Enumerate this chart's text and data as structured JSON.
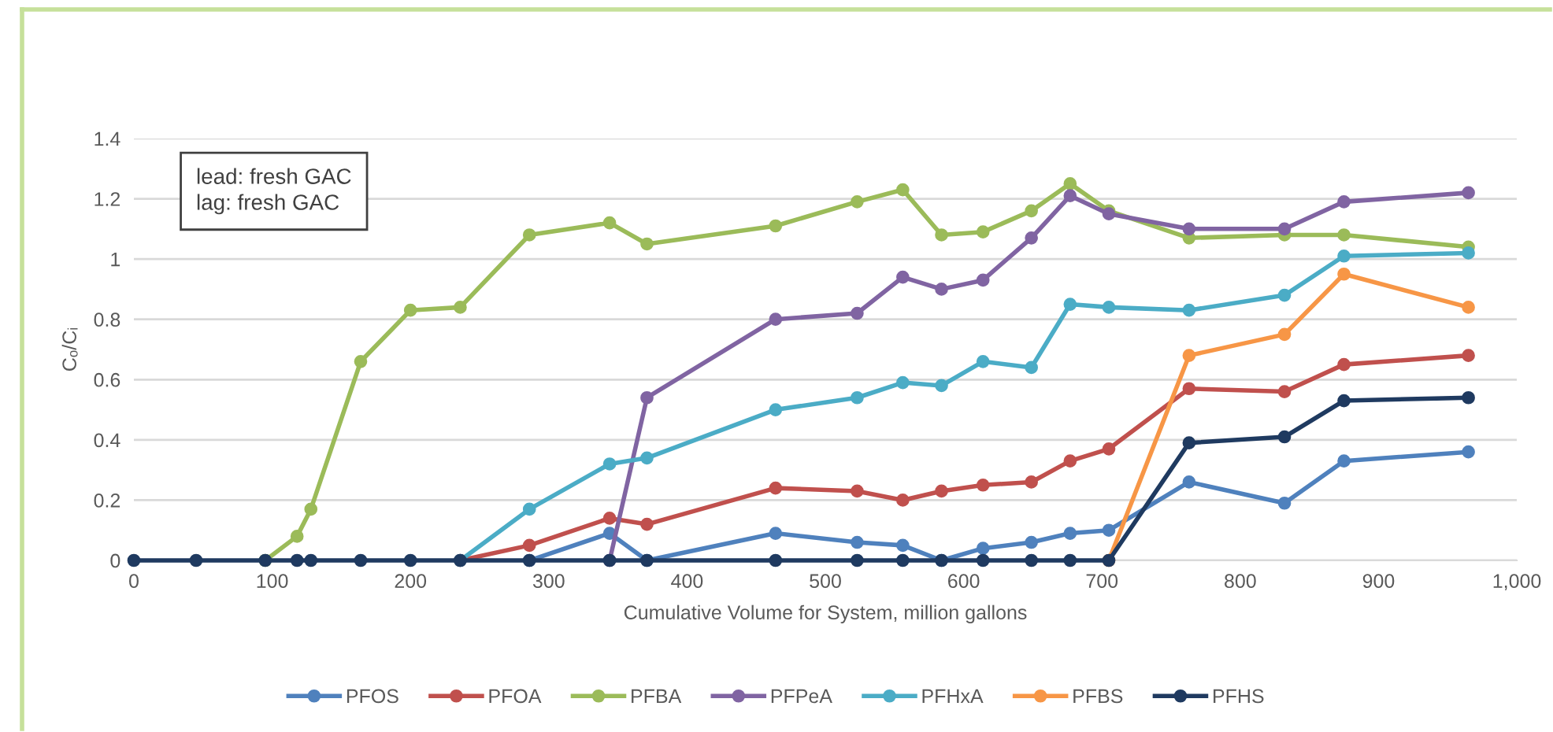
{
  "chart_data": {
    "type": "line",
    "xlabel": "Cumulative Volume for System, million gallons",
    "ylabel": "Cₒ/Cᵢ",
    "annotations": [
      "lead: fresh GAC\nlag: fresh GAC"
    ],
    "x": [
      0,
      45,
      95,
      118,
      128,
      164,
      200,
      236,
      286,
      344,
      371,
      464,
      523,
      556,
      584,
      614,
      649,
      677,
      705,
      763,
      832,
      875,
      965
    ],
    "series": [
      {
        "name": "PFOS",
        "color": "#4f81bd",
        "values": [
          null,
          null,
          null,
          null,
          null,
          null,
          null,
          null,
          0,
          0.09,
          0,
          0.09,
          0.06,
          0.05,
          0,
          0.04,
          0.06,
          0.09,
          0.1,
          0.26,
          0.19,
          0.33,
          0.36
        ]
      },
      {
        "name": "PFOA",
        "color": "#c0504d",
        "values": [
          null,
          null,
          null,
          null,
          null,
          null,
          null,
          0,
          0.05,
          0.14,
          0.12,
          0.24,
          0.23,
          0.2,
          0.23,
          0.25,
          0.26,
          0.33,
          0.37,
          0.57,
          0.56,
          0.65,
          0.68
        ]
      },
      {
        "name": "PFBA",
        "color": "#9bbb59",
        "values": [
          null,
          null,
          0,
          0.08,
          0.17,
          0.66,
          0.83,
          0.84,
          1.08,
          1.12,
          1.05,
          1.11,
          1.19,
          1.23,
          1.08,
          1.09,
          1.16,
          1.25,
          1.16,
          1.07,
          1.08,
          1.08,
          1.04
        ]
      },
      {
        "name": "PFPeA",
        "color": "#8064a2",
        "values": [
          null,
          null,
          null,
          null,
          null,
          null,
          null,
          null,
          null,
          0,
          0.54,
          0.8,
          0.82,
          0.94,
          0.9,
          0.93,
          1.07,
          1.21,
          1.15,
          1.1,
          1.1,
          1.19,
          1.22
        ]
      },
      {
        "name": "PFHxA",
        "color": "#4bacc6",
        "values": [
          null,
          null,
          null,
          null,
          null,
          null,
          null,
          0,
          0.17,
          0.32,
          0.34,
          0.5,
          0.54,
          0.59,
          0.58,
          0.66,
          0.64,
          0.85,
          0.84,
          0.83,
          0.88,
          1.01,
          1.02
        ]
      },
      {
        "name": "PFBS",
        "color": "#f79646",
        "values": [
          null,
          null,
          null,
          null,
          null,
          null,
          null,
          null,
          null,
          null,
          null,
          null,
          null,
          null,
          null,
          null,
          null,
          null,
          0,
          0.68,
          0.75,
          0.95,
          0.84
        ]
      },
      {
        "name": "PFHS",
        "color": "#1f3a60",
        "values": [
          0,
          0,
          0,
          0,
          0,
          0,
          0,
          0,
          0,
          0,
          0,
          0,
          0,
          0,
          0,
          0,
          0,
          0,
          0,
          0.39,
          0.41,
          0.53,
          0.54
        ]
      }
    ],
    "xlim": [
      0,
      1000
    ],
    "xticks": [
      0,
      100,
      200,
      300,
      400,
      500,
      600,
      700,
      800,
      900,
      {
        "value": 1000,
        "label": "1,000"
      }
    ],
    "ylim": [
      0,
      1.4
    ],
    "yticks": [
      0,
      0.2,
      0.4,
      0.6,
      0.8,
      1,
      1.2,
      1.4
    ],
    "grid": "y",
    "legend": "bottom",
    "marker": "circle",
    "line_style": "solid"
  }
}
